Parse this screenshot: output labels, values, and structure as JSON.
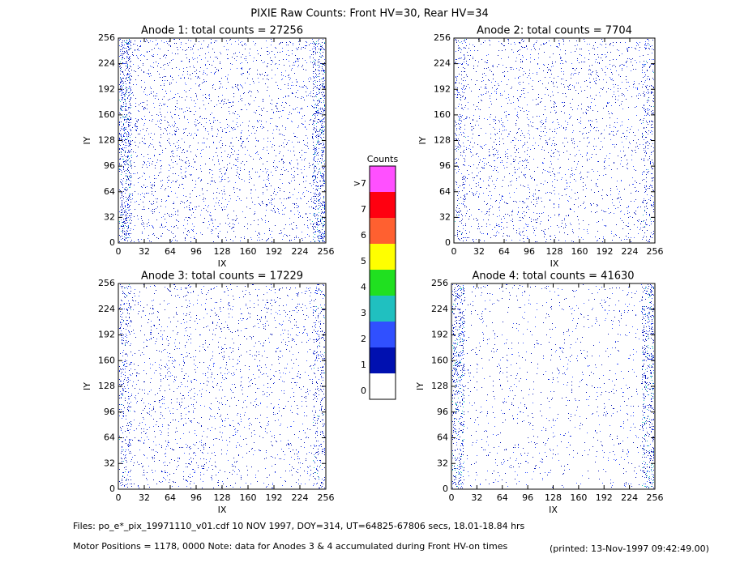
{
  "title": "PIXIE Raw Counts:  Front HV=30, Rear HV=34",
  "chart_data": [
    {
      "type": "heatmap",
      "title": "Anode 1: total counts = 27256",
      "xlabel": "IX",
      "ylabel": "IY",
      "xlim": [
        0,
        256
      ],
      "ylim": [
        0,
        256
      ],
      "xticks": [
        0,
        32,
        64,
        96,
        128,
        160,
        192,
        224,
        256
      ],
      "yticks": [
        0,
        32,
        64,
        96,
        128,
        160,
        192,
        224,
        256
      ]
    },
    {
      "type": "heatmap",
      "title": "Anode 2: total counts = 7704",
      "xlabel": "IX",
      "ylabel": "IY",
      "xlim": [
        0,
        256
      ],
      "ylim": [
        0,
        256
      ],
      "xticks": [
        0,
        32,
        64,
        96,
        128,
        160,
        192,
        224,
        256
      ],
      "yticks": [
        0,
        32,
        64,
        96,
        128,
        160,
        192,
        224,
        256
      ]
    },
    {
      "type": "heatmap",
      "title": "Anode 3: total counts = 17229",
      "xlabel": "IX",
      "ylabel": "IY",
      "xlim": [
        0,
        256
      ],
      "ylim": [
        0,
        256
      ],
      "xticks": [
        0,
        32,
        64,
        96,
        128,
        160,
        192,
        224,
        256
      ],
      "yticks": [
        0,
        32,
        64,
        96,
        128,
        160,
        192,
        224,
        256
      ]
    },
    {
      "type": "heatmap",
      "title": "Anode 4: total counts = 41630",
      "xlabel": "IX",
      "ylabel": "IY",
      "xlim": [
        0,
        256
      ],
      "ylim": [
        0,
        256
      ],
      "xticks": [
        0,
        32,
        64,
        96,
        128,
        160,
        192,
        224,
        256
      ],
      "yticks": [
        0,
        32,
        64,
        96,
        128,
        160,
        192,
        224,
        256
      ]
    }
  ],
  "colorbar": {
    "title": "Counts",
    "levels": [
      {
        "label": "0",
        "color": "#ffffff"
      },
      {
        "label": "1",
        "color": "#0010b0"
      },
      {
        "label": "2",
        "color": "#3050ff"
      },
      {
        "label": "3",
        "color": "#20c0c0"
      },
      {
        "label": "4",
        "color": "#20e020"
      },
      {
        "label": "5",
        "color": "#ffff00"
      },
      {
        "label": "6",
        "color": "#ff6030"
      },
      {
        "label": "7",
        "color": "#ff0010"
      },
      {
        "label": ">7",
        "color": "#ff50ff"
      }
    ]
  },
  "footer": {
    "files": "Files: po_e*_pix_19971110_v01.cdf    10 NOV 1997, DOY=314, UT=64825-67806 secs, 18.01-18.84 hrs",
    "motor": "Motor Positions = 1178, 0000   Note: data for Anodes 3 & 4 accumulated during Front HV-on times",
    "printed": "(printed: 13-Nov-1997 09:42:49.00)"
  }
}
